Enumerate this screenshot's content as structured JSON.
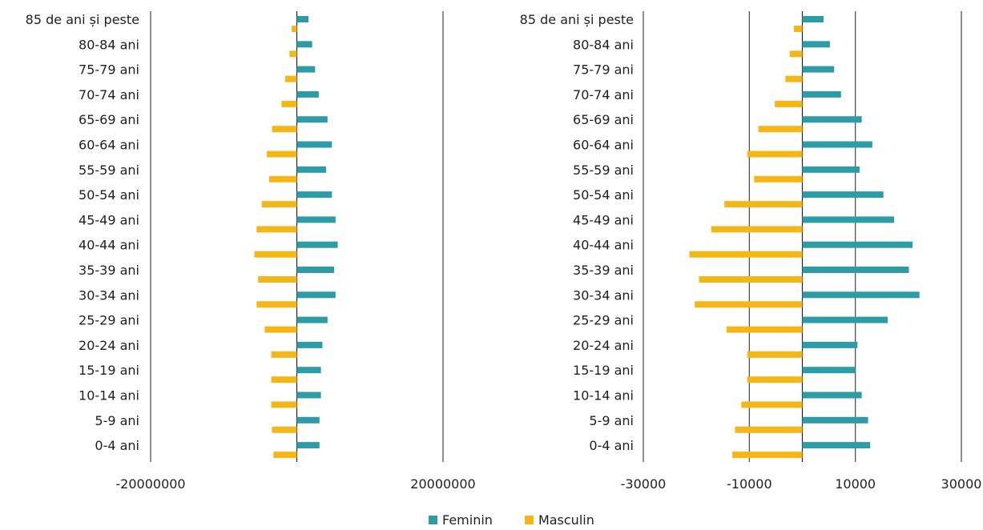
{
  "colors": {
    "feminin": "#2E9CA6",
    "masculin": "#F5B617",
    "grid": "#444444",
    "axis": "#222222"
  },
  "legend": {
    "feminin": "Feminin",
    "masculin": "Masculin"
  },
  "chart_data": [
    {
      "type": "bar",
      "orientation": "horizontal",
      "categories": [
        "85 de ani și peste",
        "80-84 ani",
        "75-79 ani",
        "70-74 ani",
        "65-69 ani",
        "60-64 ani",
        "55-59 ani",
        "50-54 ani",
        "45-49 ani",
        "40-44 ani",
        "35-39 ani",
        "30-34 ani",
        "25-29 ani",
        "20-24 ani",
        "15-19 ani",
        "10-14 ani",
        "5-9 ani",
        "0-4 ani"
      ],
      "series": [
        {
          "name": "Feminin",
          "values": [
            1600000,
            2100000,
            2500000,
            3000000,
            4200000,
            4800000,
            4000000,
            4800000,
            5300000,
            5600000,
            5100000,
            5300000,
            4200000,
            3500000,
            3300000,
            3300000,
            3100000,
            3100000
          ]
        },
        {
          "name": "Masculin",
          "values": [
            -700000,
            -1000000,
            -1600000,
            -2100000,
            -3400000,
            -4100000,
            -3800000,
            -4800000,
            -5500000,
            -5800000,
            -5300000,
            -5500000,
            -4400000,
            -3500000,
            -3500000,
            -3500000,
            -3400000,
            -3200000
          ]
        }
      ],
      "xlim": [
        -20000000,
        20000000
      ],
      "xticks": [
        "-20000000",
        "20000000"
      ],
      "grid": true,
      "legend": "bottom"
    },
    {
      "type": "bar",
      "orientation": "horizontal",
      "categories": [
        "85 de ani și peste",
        "80-84 ani",
        "75-79 ani",
        "70-74 ani",
        "65-69 ani",
        "60-64 ani",
        "55-59 ani",
        "50-54 ani",
        "45-49 ani",
        "40-44 ani",
        "35-39 ani",
        "30-34 ani",
        "25-29 ani",
        "20-24 ani",
        "15-19 ani",
        "10-14 ani",
        "5-9 ani",
        "0-4 ani"
      ],
      "series": [
        {
          "name": "Feminin",
          "values": [
            4000,
            5200,
            6000,
            7300,
            11200,
            13200,
            10800,
            15300,
            17300,
            20800,
            20100,
            22100,
            16100,
            10400,
            10000,
            11200,
            12400,
            12800
          ]
        },
        {
          "name": "Masculin",
          "values": [
            -1600,
            -2400,
            -3200,
            -5200,
            -8300,
            -10400,
            -9100,
            -14700,
            -17200,
            -21300,
            -19500,
            -20300,
            -14300,
            -10400,
            -10400,
            -11500,
            -12700,
            -13200
          ]
        }
      ],
      "xlim": [
        -30000,
        30000
      ],
      "xticks": [
        "-30000",
        "-10000",
        "10000",
        "30000"
      ],
      "grid": true,
      "legend": "bottom"
    }
  ]
}
